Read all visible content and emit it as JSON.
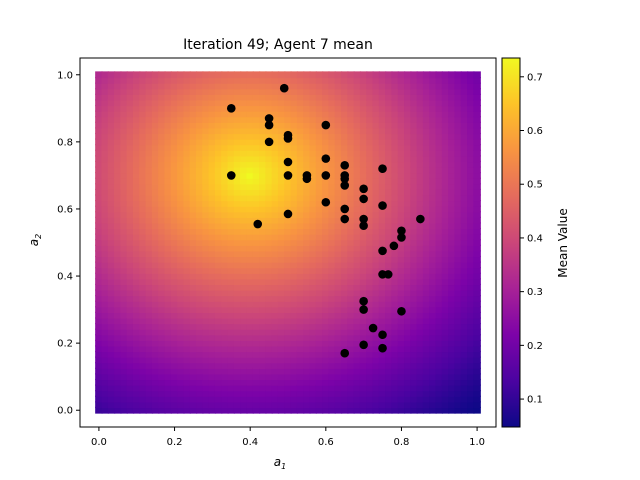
{
  "chart_data": {
    "type": "heatmap",
    "title": "Iteration 49; Agent 7 mean",
    "xlabel_base": "a",
    "xlabel_sub": "1",
    "ylabel_base": "a",
    "ylabel_sub": "2",
    "xlim": [
      -0.05,
      1.05
    ],
    "ylim": [
      -0.05,
      1.05
    ],
    "xticks": [
      0.0,
      0.2,
      0.4,
      0.6,
      0.8,
      1.0
    ],
    "yticks": [
      0.0,
      0.2,
      0.4,
      0.6,
      0.8,
      1.0
    ],
    "tick_labels": [
      "0.0",
      "0.2",
      "0.4",
      "0.6",
      "0.8",
      "1.0"
    ],
    "heatmap": {
      "domain_x": [
        0,
        1
      ],
      "domain_y": [
        0,
        1
      ],
      "peak": [
        0.4,
        0.7
      ],
      "vmin": 0.048,
      "vmax": 0.735,
      "colormap": "plasma"
    },
    "colorbar": {
      "label": "Mean Value",
      "range": [
        0.048,
        0.735
      ],
      "ticks": [
        0.1,
        0.2,
        0.3,
        0.4,
        0.5,
        0.6,
        0.7
      ],
      "tick_labels": [
        "0.1",
        "0.2",
        "0.3",
        "0.4",
        "0.5",
        "0.6",
        "0.7"
      ]
    },
    "points": [
      [
        0.35,
        0.9
      ],
      [
        0.49,
        0.96
      ],
      [
        0.45,
        0.87
      ],
      [
        0.45,
        0.85
      ],
      [
        0.45,
        0.8
      ],
      [
        0.5,
        0.82
      ],
      [
        0.5,
        0.81
      ],
      [
        0.6,
        0.85
      ],
      [
        0.5,
        0.74
      ],
      [
        0.6,
        0.75
      ],
      [
        0.35,
        0.7
      ],
      [
        0.5,
        0.7
      ],
      [
        0.55,
        0.7
      ],
      [
        0.55,
        0.69
      ],
      [
        0.6,
        0.7
      ],
      [
        0.65,
        0.73
      ],
      [
        0.65,
        0.7
      ],
      [
        0.65,
        0.69
      ],
      [
        0.65,
        0.67
      ],
      [
        0.75,
        0.72
      ],
      [
        0.7,
        0.66
      ],
      [
        0.7,
        0.63
      ],
      [
        0.6,
        0.62
      ],
      [
        0.65,
        0.6
      ],
      [
        0.75,
        0.61
      ],
      [
        0.5,
        0.585
      ],
      [
        0.42,
        0.555
      ],
      [
        0.65,
        0.57
      ],
      [
        0.7,
        0.57
      ],
      [
        0.7,
        0.55
      ],
      [
        0.85,
        0.57
      ],
      [
        0.8,
        0.535
      ],
      [
        0.8,
        0.515
      ],
      [
        0.78,
        0.49
      ],
      [
        0.75,
        0.475
      ],
      [
        0.75,
        0.405
      ],
      [
        0.765,
        0.405
      ],
      [
        0.7,
        0.325
      ],
      [
        0.7,
        0.3
      ],
      [
        0.8,
        0.295
      ],
      [
        0.725,
        0.245
      ],
      [
        0.75,
        0.225
      ],
      [
        0.7,
        0.195
      ],
      [
        0.75,
        0.185
      ],
      [
        0.65,
        0.17
      ]
    ]
  }
}
